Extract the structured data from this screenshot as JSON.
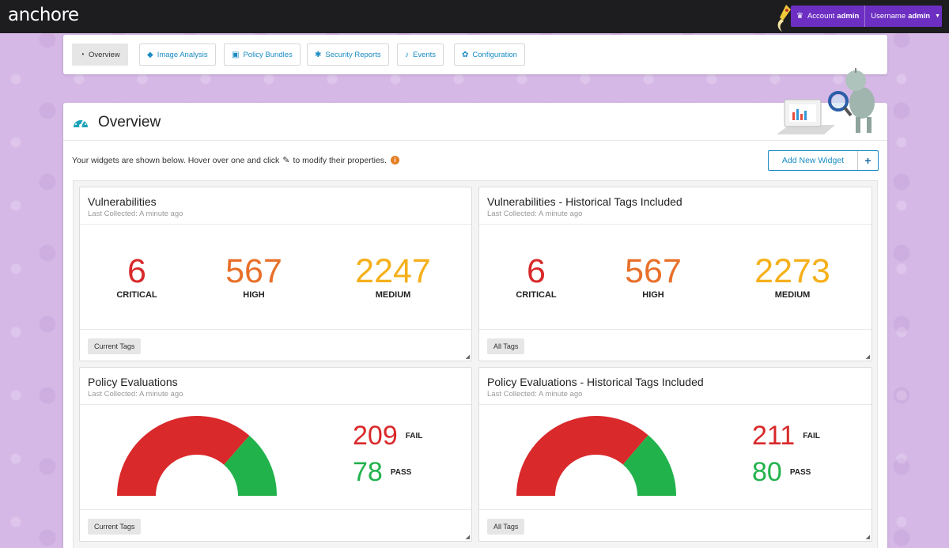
{
  "app": {
    "brand": "anchore"
  },
  "account": {
    "account_label": "Account",
    "account_value": "admin",
    "username_label": "Username",
    "username_value": "admin"
  },
  "nav": {
    "tabs": [
      {
        "label": "Overview",
        "icon": "dashboard-icon",
        "active": true
      },
      {
        "label": "Image Analysis",
        "icon": "tags-icon"
      },
      {
        "label": "Policy Bundles",
        "icon": "briefcase-icon"
      },
      {
        "label": "Security Reports",
        "icon": "bug-icon"
      },
      {
        "label": "Events",
        "icon": "bell-icon"
      },
      {
        "label": "Configuration",
        "icon": "gear-icon"
      }
    ]
  },
  "overview": {
    "title": "Overview",
    "hint_before": "Your widgets are shown below. Hover over one and click",
    "hint_after": "to modify their properties.",
    "add_widget_label": "Add New Widget"
  },
  "widgets": {
    "vuln": {
      "title": "Vulnerabilities",
      "subtitle": "Last Collected: A minute ago",
      "critical": "6",
      "critical_label": "CRITICAL",
      "high": "567",
      "high_label": "HIGH",
      "medium": "2247",
      "medium_label": "MEDIUM",
      "tag": "Current Tags"
    },
    "vuln_hist": {
      "title": "Vulnerabilities - Historical Tags Included",
      "subtitle": "Last Collected: A minute ago",
      "critical": "6",
      "critical_label": "CRITICAL",
      "high": "567",
      "high_label": "HIGH",
      "medium": "2273",
      "medium_label": "MEDIUM",
      "tag": "All Tags"
    },
    "policy": {
      "title": "Policy Evaluations",
      "subtitle": "Last Collected: A minute ago",
      "fail": "209",
      "fail_label": "FAIL",
      "pass": "78",
      "pass_label": "PASS",
      "tag": "Current Tags"
    },
    "policy_hist": {
      "title": "Policy Evaluations - Historical Tags Included",
      "subtitle": "Last Collected: A minute ago",
      "fail": "211",
      "fail_label": "FAIL",
      "pass": "80",
      "pass_label": "PASS",
      "tag": "All Tags"
    }
  },
  "colors": {
    "critical": "#d9292b",
    "high": "#e8702a",
    "medium": "#f5b01b",
    "fail": "#d9292b",
    "pass": "#22b24c",
    "accent": "#1a8bc3",
    "account_bar": "#6c2fc2"
  }
}
